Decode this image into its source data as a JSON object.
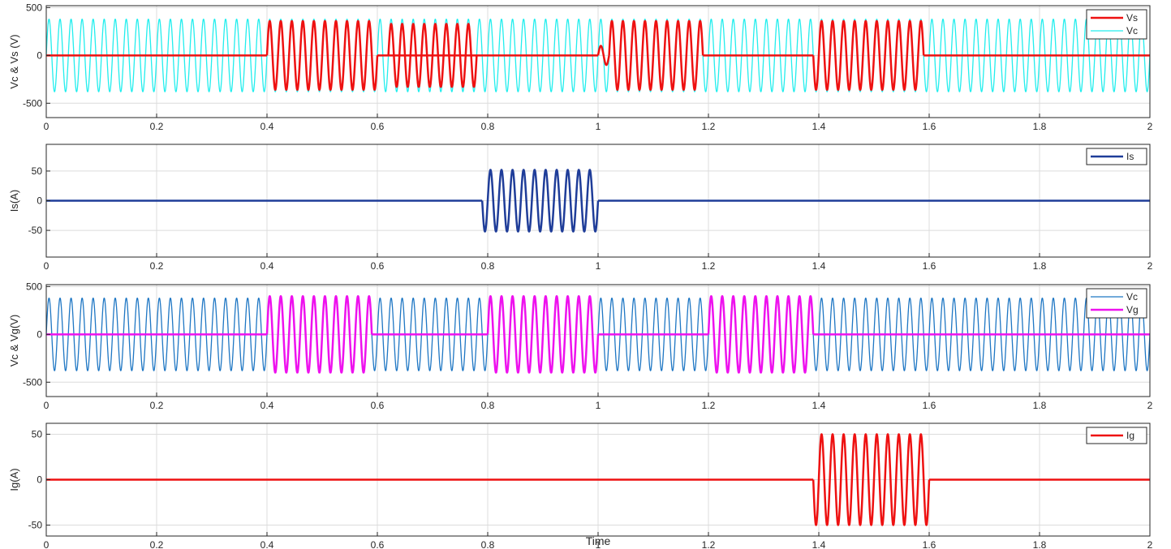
{
  "chart_data": [
    {
      "type": "line",
      "ylabel": "Vc & Vs (V)",
      "xlim": [
        0,
        2
      ],
      "ylim": [
        -650,
        520
      ],
      "xticks": [
        0,
        0.2,
        0.4,
        0.6,
        0.8,
        1,
        1.2,
        1.4,
        1.6,
        1.8,
        2
      ],
      "yticks": [
        -500,
        0,
        500
      ],
      "grid": true,
      "legend": "top-right",
      "frequency_hz": 50,
      "series": [
        {
          "name": "Vs",
          "color": "#ee1111",
          "width": 2.5,
          "segments": [
            {
              "start": 0,
              "end": 0.4,
              "amp": 0
            },
            {
              "start": 0.4,
              "end": 0.6,
              "amp": 360
            },
            {
              "start": 0.6,
              "end": 0.8,
              "amp": 0
            },
            {
              "start": 0.62,
              "end": 0.78,
              "amp": 330
            },
            {
              "start": 0.8,
              "end": 1.0,
              "amp": 0
            },
            {
              "start": 1.0,
              "end": 1.02,
              "amp": 100
            },
            {
              "start": 1.02,
              "end": 1.19,
              "amp": 360
            },
            {
              "start": 1.19,
              "end": 1.39,
              "amp": 0
            },
            {
              "start": 1.39,
              "end": 1.59,
              "amp": 360
            },
            {
              "start": 1.59,
              "end": 2.0,
              "amp": 0
            }
          ]
        },
        {
          "name": "Vc",
          "color": "#22eeee",
          "width": 1.3,
          "segments": [
            {
              "start": 0,
              "end": 2.0,
              "amp": 380
            }
          ]
        }
      ]
    },
    {
      "type": "line",
      "ylabel": "Is(A)",
      "xlim": [
        0,
        2
      ],
      "ylim": [
        -95,
        95
      ],
      "xticks": [
        0,
        0.2,
        0.4,
        0.6,
        0.8,
        1,
        1.2,
        1.4,
        1.6,
        1.8,
        2
      ],
      "yticks": [
        -50,
        0,
        50
      ],
      "grid": true,
      "legend": "top-right",
      "frequency_hz": 50,
      "series": [
        {
          "name": "Is",
          "color": "#1f3d99",
          "width": 2.5,
          "segments": [
            {
              "start": 0,
              "end": 0.79,
              "amp": 0
            },
            {
              "start": 0.79,
              "end": 1.0,
              "amp": 52
            },
            {
              "start": 1.0,
              "end": 2.0,
              "amp": 0
            }
          ]
        }
      ]
    },
    {
      "type": "line",
      "ylabel": "Vc & Vg(V)",
      "xlim": [
        0,
        2
      ],
      "ylim": [
        -650,
        520
      ],
      "xticks": [
        0,
        0.2,
        0.4,
        0.6,
        0.8,
        1,
        1.2,
        1.4,
        1.6,
        1.8,
        2
      ],
      "yticks": [
        -500,
        0,
        500
      ],
      "grid": true,
      "legend": "top-right",
      "frequency_hz": 50,
      "series": [
        {
          "name": "Vc",
          "color": "#1f77c4",
          "width": 1.3,
          "segments": [
            {
              "start": 0,
              "end": 2.0,
              "amp": 380
            }
          ]
        },
        {
          "name": "Vg",
          "color": "#ee11ee",
          "width": 2.5,
          "segments": [
            {
              "start": 0,
              "end": 0.4,
              "amp": 0
            },
            {
              "start": 0.4,
              "end": 0.59,
              "amp": 400
            },
            {
              "start": 0.59,
              "end": 0.8,
              "amp": 0
            },
            {
              "start": 0.8,
              "end": 1.0,
              "amp": 400
            },
            {
              "start": 1.0,
              "end": 1.2,
              "amp": 0
            },
            {
              "start": 1.2,
              "end": 1.39,
              "amp": 400
            },
            {
              "start": 1.39,
              "end": 2.0,
              "amp": 0
            }
          ]
        }
      ]
    },
    {
      "type": "line",
      "ylabel": "Ig(A)",
      "xlabel": "Time",
      "xlim": [
        0,
        2
      ],
      "ylim": [
        -62,
        62
      ],
      "xticks": [
        0,
        0.2,
        0.4,
        0.6,
        0.8,
        1,
        1.2,
        1.4,
        1.6,
        1.8,
        2
      ],
      "yticks": [
        -50,
        0,
        50
      ],
      "grid": true,
      "legend": "top-right",
      "frequency_hz": 50,
      "series": [
        {
          "name": "Ig",
          "color": "#ee1111",
          "width": 2.5,
          "segments": [
            {
              "start": 0,
              "end": 1.39,
              "amp": 0
            },
            {
              "start": 1.39,
              "end": 1.6,
              "amp": 50
            },
            {
              "start": 1.6,
              "end": 2.0,
              "amp": 0
            }
          ]
        }
      ]
    }
  ]
}
